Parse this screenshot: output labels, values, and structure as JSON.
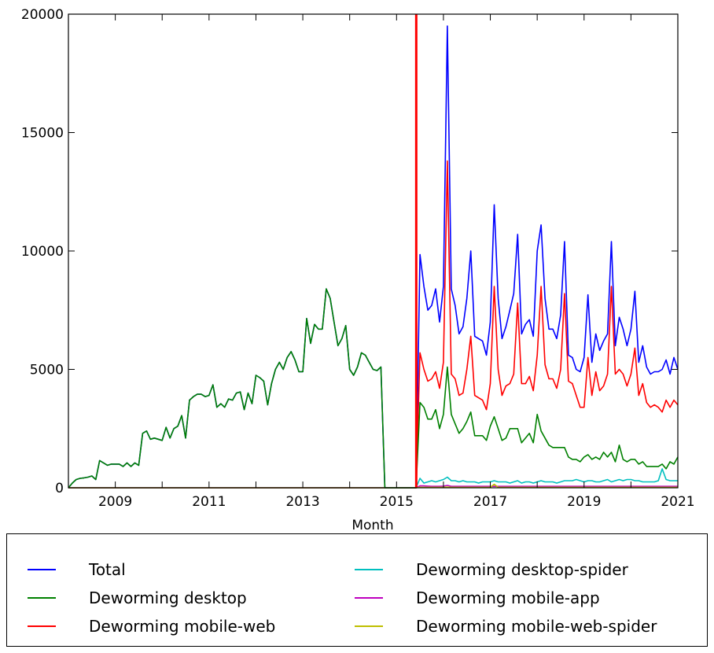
{
  "chart_data": {
    "type": "line",
    "title": "",
    "xlabel": "Month",
    "ylabel": "",
    "xlim": [
      2008,
      2021
    ],
    "ylim": [
      0,
      20000
    ],
    "yticks": [
      0,
      5000,
      10000,
      15000,
      20000
    ],
    "xtick_labels": [
      "2009",
      "2011",
      "2013",
      "2015",
      "2017",
      "2019",
      "2021"
    ],
    "grid": false,
    "legend_position": "below",
    "vline": {
      "x": 2015.42,
      "color": "#ff0000"
    },
    "series": [
      {
        "name": "Total",
        "color": "#0000ff",
        "segments": [
          {
            "start": "2008-01",
            "values": [
              0,
              200,
              350,
              400,
              420,
              450,
              500,
              350,
              1150,
              1050,
              950,
              1000,
              1000,
              1000,
              900,
              1050,
              900,
              1050,
              950,
              2300,
              2400,
              2050,
              2100,
              2050,
              2000,
              2550,
              2100,
              2500,
              2600,
              3050,
              2100,
              3700,
              3850,
              3950,
              3950,
              3850,
              3900,
              4350,
              3400,
              3550,
              3400,
              3750,
              3700,
              4000,
              4050,
              3300,
              4000,
              3550,
              4750,
              4650,
              4500,
              3500,
              4400,
              5000,
              5300,
              5000,
              5500,
              5750,
              5400,
              4900,
              4900,
              7150,
              6100,
              6900,
              6700,
              6700,
              8400,
              8000,
              7000,
              6000,
              6300,
              6850,
              5000,
              4750,
              5100,
              5700,
              5600,
              5300,
              5000,
              4950,
              5100,
              0
            ]
          },
          {
            "start": "2015-07",
            "values": [
              9850,
              8500,
              7500,
              7700,
              8400,
              7000,
              8500,
              19500,
              8400,
              7700,
              6500,
              6800,
              8000,
              10000,
              6400,
              6300,
              6200,
              5600,
              7000,
              11950,
              8000,
              6300,
              6800,
              7500,
              8200,
              10700,
              6500,
              6900,
              7100,
              6400,
              10000,
              11100,
              8000,
              6700,
              6700,
              6300,
              7300,
              10400,
              5600,
              5500,
              5000,
              4900,
              5500,
              8150,
              5300,
              6500,
              5800,
              6200,
              6500,
              10400,
              6000,
              7200,
              6700,
              6000,
              6700,
              8300,
              5300,
              6000,
              5100,
              4800,
              4900,
              4900,
              5000,
              5400,
              4800,
              5500,
              5000
            ]
          }
        ]
      },
      {
        "name": "Deworming desktop",
        "color": "#008000",
        "segments": [
          {
            "start": "2008-01",
            "values": [
              0,
              200,
              350,
              400,
              420,
              450,
              500,
              350,
              1150,
              1050,
              950,
              1000,
              1000,
              1000,
              900,
              1050,
              900,
              1050,
              950,
              2300,
              2400,
              2050,
              2100,
              2050,
              2000,
              2550,
              2100,
              2500,
              2600,
              3050,
              2100,
              3700,
              3850,
              3950,
              3950,
              3850,
              3900,
              4350,
              3400,
              3550,
              3400,
              3750,
              3700,
              4000,
              4050,
              3300,
              4000,
              3550,
              4750,
              4650,
              4500,
              3500,
              4400,
              5000,
              5300,
              5000,
              5500,
              5750,
              5400,
              4900,
              4900,
              7150,
              6100,
              6900,
              6700,
              6700,
              8400,
              8000,
              7000,
              6000,
              6300,
              6850,
              5000,
              4750,
              5100,
              5700,
              5600,
              5300,
              5000,
              4950,
              5100,
              0
            ]
          },
          {
            "start": "2015-07",
            "values": [
              3600,
              3400,
              2900,
              2900,
              3300,
              2500,
              3100,
              5100,
              3100,
              2700,
              2300,
              2500,
              2800,
              3200,
              2200,
              2200,
              2200,
              2000,
              2600,
              3000,
              2500,
              2000,
              2100,
              2500,
              2500,
              2500,
              1900,
              2100,
              2300,
              1900,
              3100,
              2400,
              2100,
              1800,
              1700,
              1700,
              1700,
              1700,
              1300,
              1200,
              1200,
              1100,
              1300,
              1400,
              1200,
              1300,
              1200,
              1500,
              1300,
              1500,
              1100,
              1800,
              1200,
              1100,
              1200,
              1200,
              1000,
              1100,
              900,
              900,
              900,
              900,
              1000,
              800,
              1100,
              1000,
              1300
            ]
          }
        ]
      },
      {
        "name": "Deworming mobile-web",
        "color": "#ff0000",
        "segments": [
          {
            "start": "2015-07",
            "values": [
              5700,
              5000,
              4500,
              4600,
              4900,
              4200,
              5300,
              13800,
              4800,
              4600,
              3900,
              4000,
              5000,
              6400,
              3900,
              3800,
              3700,
              3300,
              4400,
              8500,
              5000,
              3900,
              4300,
              4400,
              4800,
              7800,
              4400,
              4400,
              4700,
              4100,
              5600,
              8500,
              5200,
              4600,
              4600,
              4200,
              5000,
              8200,
              4500,
              4400,
              3900,
              3400,
              3400,
              5500,
              3900,
              4900,
              4100,
              4300,
              4800,
              8500,
              4800,
              5000,
              4800,
              4300,
              4800,
              5900,
              3900,
              4400,
              3600,
              3400,
              3500,
              3400,
              3200,
              3700,
              3400,
              3700,
              3500
            ]
          }
        ]
      },
      {
        "name": "Deworming desktop-spider",
        "color": "#00bfbf",
        "segments": [
          {
            "start": "2015-07",
            "values": [
              400,
              200,
              250,
              300,
              250,
              300,
              350,
              450,
              300,
              300,
              250,
              300,
              250,
              250,
              250,
              200,
              250,
              250,
              250,
              300,
              250,
              250,
              250,
              200,
              250,
              300,
              200,
              250,
              250,
              200,
              250,
              300,
              250,
              250,
              250,
              200,
              250,
              300,
              300,
              300,
              350,
              300,
              250,
              300,
              300,
              250,
              250,
              300,
              350,
              250,
              300,
              350,
              300,
              350,
              350,
              300,
              300,
              250,
              250,
              250,
              250,
              300,
              800,
              350,
              300,
              300,
              300
            ]
          }
        ]
      },
      {
        "name": "Deworming mobile-app",
        "color": "#bf00bf",
        "segments": [
          {
            "start": "2015-07",
            "values": [
              80,
              80,
              70,
              60,
              60,
              60,
              70,
              100,
              60,
              60,
              60,
              60,
              60,
              60,
              60,
              60,
              60,
              60,
              60,
              60,
              60,
              60,
              60,
              60,
              60,
              60,
              60,
              60,
              60,
              60,
              60,
              60,
              60,
              60,
              60,
              60,
              60,
              60,
              60,
              60,
              60,
              60,
              60,
              60,
              60,
              60,
              60,
              60,
              60,
              60,
              60,
              60,
              60,
              60,
              60,
              60,
              60,
              60,
              60,
              60,
              60,
              60,
              60,
              60,
              60,
              60,
              60
            ]
          }
        ]
      },
      {
        "name": "Deworming mobile-web-spider",
        "color": "#bfbf00",
        "segments": [
          {
            "start": "2015-07",
            "values": [
              20,
              20,
              20,
              20,
              20,
              20,
              20,
              30,
              20,
              20,
              20,
              20,
              20,
              20,
              20,
              20,
              20,
              20,
              20,
              150,
              20,
              20,
              20,
              20,
              20,
              20,
              20,
              20,
              20,
              20,
              20,
              20,
              20,
              20,
              20,
              20,
              20,
              20,
              20,
              20,
              20,
              20,
              20,
              20,
              20,
              20,
              20,
              20,
              20,
              20,
              20,
              20,
              20,
              20,
              20,
              20,
              20,
              20,
              20,
              20,
              20,
              20,
              20,
              20,
              20,
              20,
              20
            ]
          }
        ]
      }
    ]
  },
  "legend": {
    "items": [
      "Total",
      "Deworming desktop",
      "Deworming mobile-web",
      "Deworming desktop-spider",
      "Deworming mobile-app",
      "Deworming mobile-web-spider"
    ]
  }
}
